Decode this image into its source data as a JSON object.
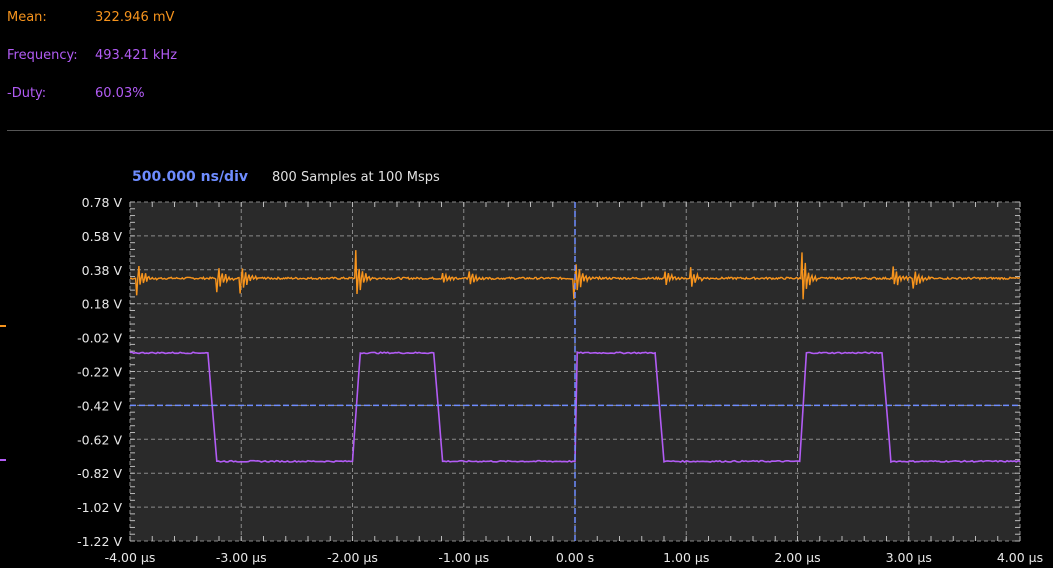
{
  "measurements": [
    {
      "label": "Mean:",
      "value": "322.946 mV",
      "color": "#f7941d"
    },
    {
      "label": "Frequency:",
      "value": "493.421 kHz",
      "color": "#b25cf5"
    },
    {
      "label": "-Duty:",
      "value": "60.03%",
      "color": "#b25cf5"
    }
  ],
  "timebase": {
    "label": "500.000 ns/div",
    "color": "#6e8cff",
    "samples": "800  Samples at 100 Msps"
  },
  "chart_data": {
    "type": "line",
    "xlabel": "",
    "ylabel": "",
    "xlim": [
      -4.0,
      4.0
    ],
    "ylim": [
      -1.22,
      0.78
    ],
    "x_ticks": [
      -4,
      -3,
      -2,
      -1,
      0,
      1,
      2,
      3,
      4
    ],
    "x_tick_labels": [
      "-4.00 µs",
      "-3.00 µs",
      "-2.00 µs",
      "-1.00 µs",
      "0.00 s",
      "1.00 µs",
      "2.00 µs",
      "3.00 µs",
      "4.00 µs"
    ],
    "y_ticks": [
      0.78,
      0.58,
      0.38,
      0.18,
      -0.02,
      -0.22,
      -0.42,
      -0.62,
      -0.82,
      -1.02,
      -1.22
    ],
    "y_tick_labels": [
      "0.78 V",
      "0.58 V",
      "0.38 V",
      "0.18 V",
      "-0.02 V",
      "-0.22 V",
      "-0.42 V",
      "-0.62 V",
      "-0.82 V",
      "-1.02 V",
      "-1.22 V"
    ],
    "grid": true,
    "trigger_time": 0.0,
    "trigger_level": -0.42,
    "series": [
      {
        "color": "#f7941d",
        "baseline": 0.33,
        "spikes": [
          {
            "x": -3.93,
            "amp": 0.09
          },
          {
            "x": -3.21,
            "amp": 0.08
          },
          {
            "x": -3.0,
            "amp": 0.1
          },
          {
            "x": -1.98,
            "amp": 0.18
          },
          {
            "x": -1.2,
            "amp": 0.05
          },
          {
            "x": -0.96,
            "amp": 0.06
          },
          {
            "x": 0.0,
            "amp": 0.14
          },
          {
            "x": 0.8,
            "amp": 0.06
          },
          {
            "x": 1.03,
            "amp": 0.07
          },
          {
            "x": 2.03,
            "amp": 0.18
          },
          {
            "x": 2.85,
            "amp": 0.09
          },
          {
            "x": 3.05,
            "amp": 0.07
          }
        ]
      },
      {
        "color": "#b25cf5",
        "high": -0.11,
        "low": -0.75,
        "points": [
          [
            -4.0,
            -0.11
          ],
          [
            -3.3,
            -0.11
          ],
          [
            -3.22,
            -0.75
          ],
          [
            -2.0,
            -0.75
          ],
          [
            -1.93,
            -0.11
          ],
          [
            -1.27,
            -0.11
          ],
          [
            -1.19,
            -0.75
          ],
          [
            0.0,
            -0.75
          ],
          [
            0.02,
            -0.11
          ],
          [
            0.72,
            -0.11
          ],
          [
            0.8,
            -0.75
          ],
          [
            2.02,
            -0.75
          ],
          [
            2.08,
            -0.11
          ],
          [
            2.76,
            -0.11
          ],
          [
            2.84,
            -0.75
          ],
          [
            4.0,
            -0.75
          ]
        ]
      }
    ]
  }
}
